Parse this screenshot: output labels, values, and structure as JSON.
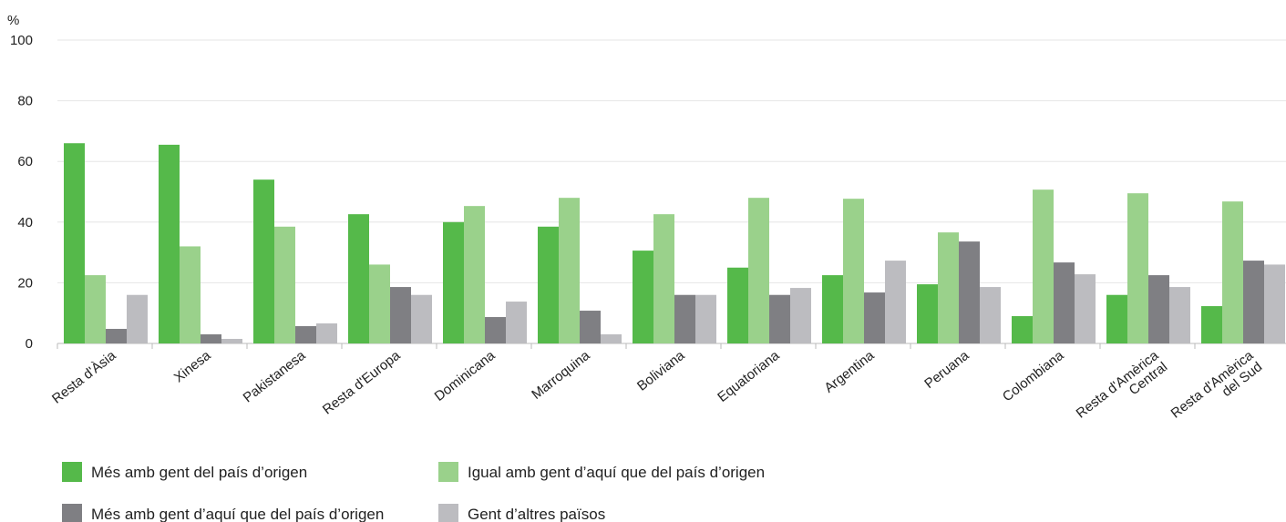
{
  "chart_data": {
    "type": "bar",
    "y_unit": "%",
    "categories": [
      "Resta d'Àsia",
      "Xinesa",
      "Pakistanesa",
      "Resta d'Europa",
      "Dominicana",
      "Marroquina",
      "Boliviana",
      "Equatoriana",
      "Argentina",
      "Peruana",
      "Colombiana",
      "Resta d'Amèrica\nCentral",
      "Resta d'Amèrica\ndel Sud"
    ],
    "series": [
      {
        "name": "Més amb gent del país d’origen",
        "color": "#55b94a",
        "values": [
          66,
          65.5,
          54,
          42.6,
          40,
          38.5,
          30.6,
          25,
          22.5,
          19.5,
          9,
          16,
          12.3
        ]
      },
      {
        "name": "Igual amb gent d’aquí que del país d’origen",
        "color": "#9ad18b",
        "values": [
          22.5,
          32,
          38.5,
          26,
          45.3,
          48,
          42.6,
          48,
          47.7,
          36.6,
          50.7,
          49.5,
          46.8
        ]
      },
      {
        "name": "Més amb gent d’aquí que del país d’origen",
        "color": "#7f7f83",
        "values": [
          4.8,
          3,
          5.7,
          18.6,
          8.7,
          10.8,
          16,
          16,
          16.8,
          33.6,
          26.7,
          22.5,
          27.3
        ]
      },
      {
        "name": "Gent d’altres països",
        "color": "#bcbcc0",
        "values": [
          16,
          1.5,
          6.6,
          16,
          13.8,
          3,
          16,
          18.3,
          27.3,
          18.6,
          22.8,
          18.6,
          26
        ]
      }
    ],
    "ylim": [
      0,
      100
    ],
    "yticks": [
      0,
      20,
      40,
      60,
      80,
      100
    ],
    "grid": true
  }
}
